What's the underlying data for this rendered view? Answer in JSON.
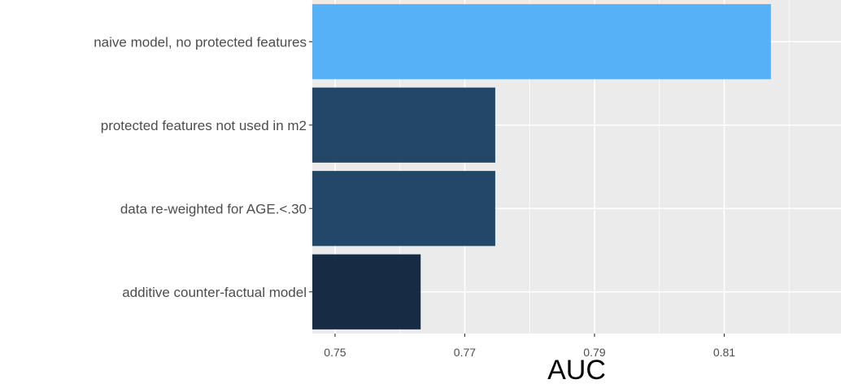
{
  "chart_data": {
    "type": "bar",
    "orientation": "horizontal",
    "categories": [
      "naive model, no protected features",
      "protected features not used in m2",
      "data re-weighted for AGE.<.30",
      "additive counter-factual model"
    ],
    "values": [
      0.8172,
      0.7747,
      0.7747,
      0.7632
    ],
    "colors": [
      "#56B1F7",
      "#224767",
      "#224767",
      "#172B45"
    ],
    "xlabel": "AUC",
    "ylabel": "",
    "xlim": [
      0.7465,
      0.828
    ],
    "x_ticks": [
      0.75,
      0.77,
      0.79,
      0.81
    ],
    "x_tick_labels": [
      "0.75",
      "0.77",
      "0.79",
      "0.81"
    ],
    "grid": true,
    "panel_background": "#EBEBEB",
    "grid_color": "#FFFFFF"
  }
}
